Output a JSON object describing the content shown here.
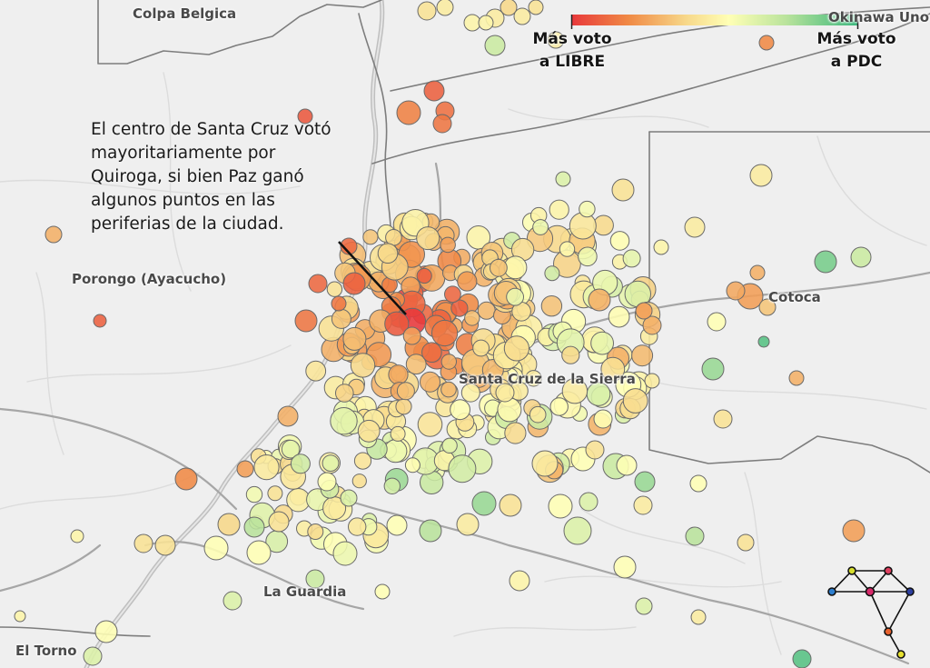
{
  "map": {
    "annotation": "El centro de Santa Cruz votó mayoritariamente por Quiroga, si bien Paz ganó algunos puntos en las periferias de la ciudad.",
    "places": {
      "colpa_belgica": "Colpa Belgica",
      "okinawa": "Okinawa Uno",
      "porongo": "Porongo (Ayacucho)",
      "cotoca": "Cotoca",
      "santa_cruz": "Santa Cruz de la Sierra",
      "la_guardia": "La Guardia",
      "el_torno": "El Torno"
    },
    "legend": {
      "left_label": "Más voto\na LIBRE",
      "right_label": "Más voto\na PDC",
      "colors": [
        "#e8383b",
        "#f08a45",
        "#f7d88a",
        "#ffffb5",
        "#b9e39c",
        "#36b67a"
      ]
    },
    "logo": "network-logo-icon"
  }
}
